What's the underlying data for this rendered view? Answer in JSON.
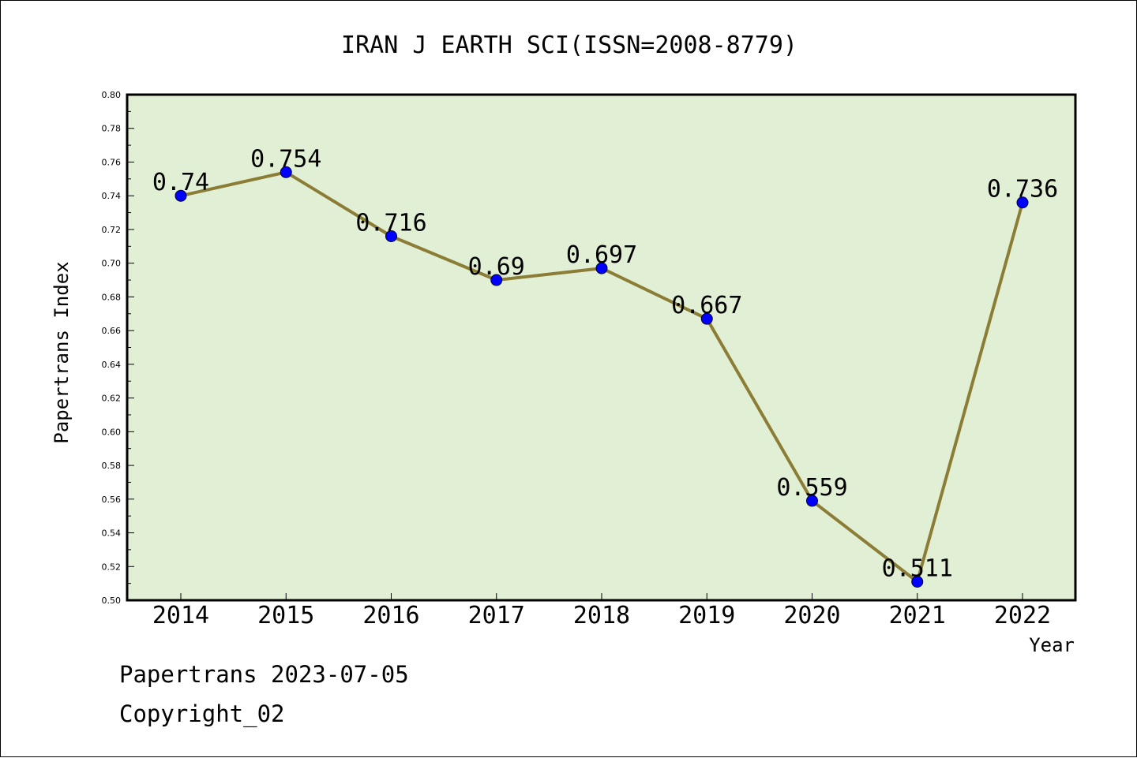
{
  "chart_data": {
    "type": "line",
    "title": "IRAN J EARTH SCI(ISSN=2008-8779)",
    "xlabel": "Year",
    "ylabel": "Papertrans Index",
    "x": [
      "2014",
      "2015",
      "2016",
      "2017",
      "2018",
      "2019",
      "2020",
      "2021",
      "2022"
    ],
    "values": [
      0.74,
      0.754,
      0.716,
      0.69,
      0.697,
      0.667,
      0.559,
      0.511,
      0.736
    ],
    "data_labels": [
      "0.74",
      "0.754",
      "0.716",
      "0.69",
      "0.697",
      "0.667",
      "0.559",
      "0.511",
      "0.736"
    ],
    "ylim": [
      0.5,
      0.8
    ],
    "yticks": [
      "0.50",
      "0.52",
      "0.54",
      "0.56",
      "0.58",
      "0.60",
      "0.62",
      "0.64",
      "0.66",
      "0.68",
      "0.70",
      "0.72",
      "0.74",
      "0.76",
      "0.78",
      "0.80"
    ],
    "grid": false,
    "colors": {
      "plot_background": "#e1efd4",
      "line": "#8b7d35",
      "marker": "#0000ff",
      "axes": "#000000"
    }
  },
  "footer": {
    "line1": "Papertrans 2023-07-05",
    "line2": "Copyright_02"
  }
}
